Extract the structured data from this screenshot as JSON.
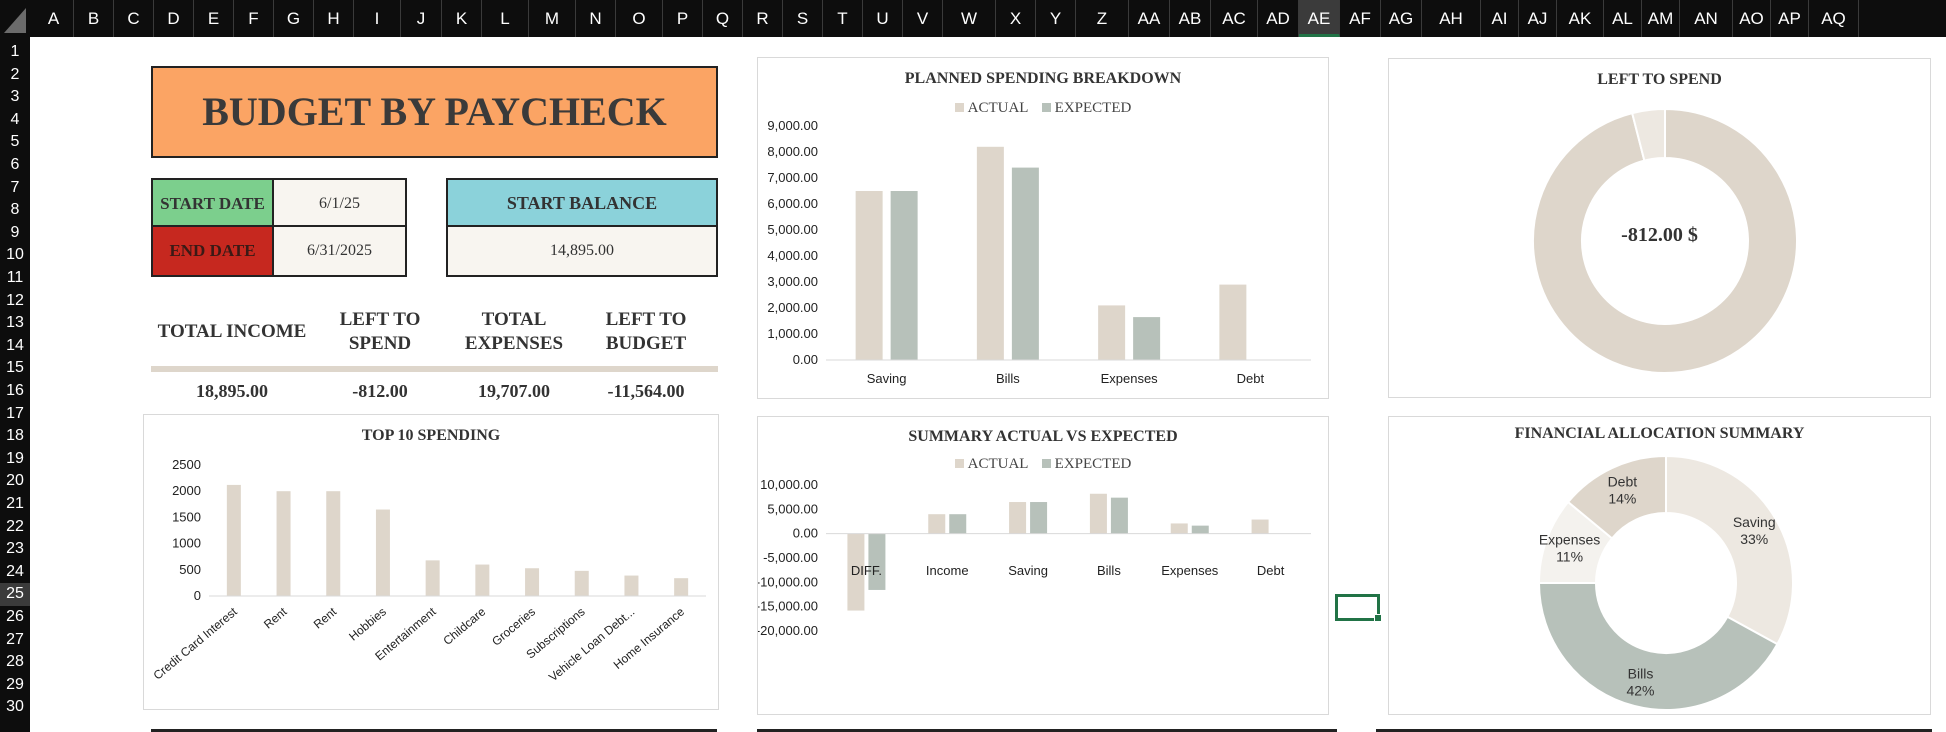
{
  "spreadsheet": {
    "columns": [
      "A",
      "B",
      "C",
      "D",
      "E",
      "F",
      "G",
      "H",
      "I",
      "J",
      "K",
      "L",
      "M",
      "N",
      "O",
      "P",
      "Q",
      "R",
      "S",
      "T",
      "U",
      "V",
      "W",
      "X",
      "Y",
      "Z",
      "AA",
      "AB",
      "AC",
      "AD",
      "AE",
      "AF",
      "AG",
      "AH",
      "AI",
      "AJ",
      "AK",
      "AL",
      "AM",
      "AN",
      "AO",
      "AP",
      "AQ"
    ],
    "rows": [
      "1",
      "2",
      "3",
      "4",
      "5",
      "6",
      "7",
      "8",
      "9",
      "10",
      "11",
      "12",
      "13",
      "14",
      "15",
      "16",
      "17",
      "18",
      "19",
      "20",
      "21",
      "22",
      "23",
      "24",
      "25",
      "26",
      "27",
      "28",
      "29",
      "30"
    ],
    "selected_column": "AE",
    "selected_row": "25",
    "colors": {
      "header_bg": "#0d0d0d",
      "selection": "#217346"
    }
  },
  "dashboard": {
    "title": "BUDGET BY PAYCHECK",
    "start_date_label": "START DATE",
    "start_date_value": "6/1/25",
    "end_date_label": "END DATE",
    "end_date_value": "6/31/2025",
    "start_balance_label": "START BALANCE",
    "start_balance_value": "14,895.00",
    "stats": [
      {
        "label_lines": [
          "TOTAL INCOME"
        ],
        "value": "18,895.00"
      },
      {
        "label_lines": [
          "LEFT TO",
          "SPEND"
        ],
        "value": "-812.00"
      },
      {
        "label_lines": [
          "TOTAL",
          "EXPENSES"
        ],
        "value": "19,707.00"
      },
      {
        "label_lines": [
          "LEFT TO",
          "BUDGET"
        ],
        "value": "-11,564.00"
      }
    ],
    "colors": {
      "title_bg": "#fba464",
      "start_date_bg": "#7ccf8d",
      "end_date_bg": "#c6281f",
      "balance_bg": "#8bd2da",
      "cream": "#f8f5f0",
      "actual": "#ded6cb",
      "expected": "#b7c1ba"
    }
  },
  "chart_data": [
    {
      "id": "planned",
      "type": "bar",
      "title": "PLANNED SPENDING BREAKDOWN",
      "categories": [
        "Saving",
        "Bills",
        "Expenses",
        "Debt"
      ],
      "series": [
        {
          "name": "ACTUAL",
          "values": [
            6500,
            8200,
            2100,
            2900
          ]
        },
        {
          "name": "EXPECTED",
          "values": [
            6500,
            7400,
            1650,
            0
          ]
        }
      ],
      "y_ticks": [
        "0.00",
        "1,000.00",
        "2,000.00",
        "3,000.00",
        "4,000.00",
        "5,000.00",
        "6,000.00",
        "7,000.00",
        "8,000.00",
        "9,000.00"
      ],
      "ylim": [
        0,
        9000
      ],
      "legend": "top"
    },
    {
      "id": "lefttospend",
      "type": "pie",
      "title": "LEFT TO SPEND",
      "center_label": "-812.00 $",
      "values": [
        96,
        4
      ]
    },
    {
      "id": "top10",
      "type": "bar",
      "title": "TOP 10 SPENDING",
      "categories": [
        "Credit Card Interest",
        "Rent",
        "Rent",
        "Hobbies",
        "Entertainment",
        "Childcare",
        "Groceries",
        "Subscriptions",
        "Vehicle Loan Debt...",
        "Home Insurance"
      ],
      "values": [
        2120,
        2000,
        2000,
        1650,
        680,
        600,
        530,
        480,
        390,
        340
      ],
      "y_ticks": [
        "0",
        "500",
        "1000",
        "1500",
        "2000",
        "2500"
      ],
      "ylim": [
        0,
        2500
      ]
    },
    {
      "id": "summary",
      "type": "bar",
      "title": "SUMMARY ACTUAL VS EXPECTED",
      "categories": [
        "DIFF.",
        "Income",
        "Saving",
        "Bills",
        "Expenses",
        "Debt"
      ],
      "series": [
        {
          "name": "ACTUAL",
          "values": [
            -15800,
            4000,
            6500,
            8200,
            2100,
            2900
          ]
        },
        {
          "name": "EXPECTED",
          "values": [
            -11564,
            4000,
            6500,
            7400,
            1650,
            0
          ]
        }
      ],
      "y_ticks": [
        "-20,000.00",
        "-15,000.00",
        "-10,000.00",
        "-5,000.00",
        "0.00",
        "5,000.00",
        "10,000.00"
      ],
      "ylim": [
        -20000,
        10000
      ],
      "legend": "top"
    },
    {
      "id": "allocation",
      "type": "pie",
      "title": "FINANCIAL ALLOCATION SUMMARY",
      "slices": [
        {
          "label": "Saving",
          "pct_label": "33%",
          "value": 33
        },
        {
          "label": "Bills",
          "pct_label": "42%",
          "value": 42
        },
        {
          "label": "Expenses",
          "pct_label": "11%",
          "value": 11
        },
        {
          "label": "Debt",
          "pct_label": "14%",
          "value": 14
        }
      ]
    }
  ]
}
